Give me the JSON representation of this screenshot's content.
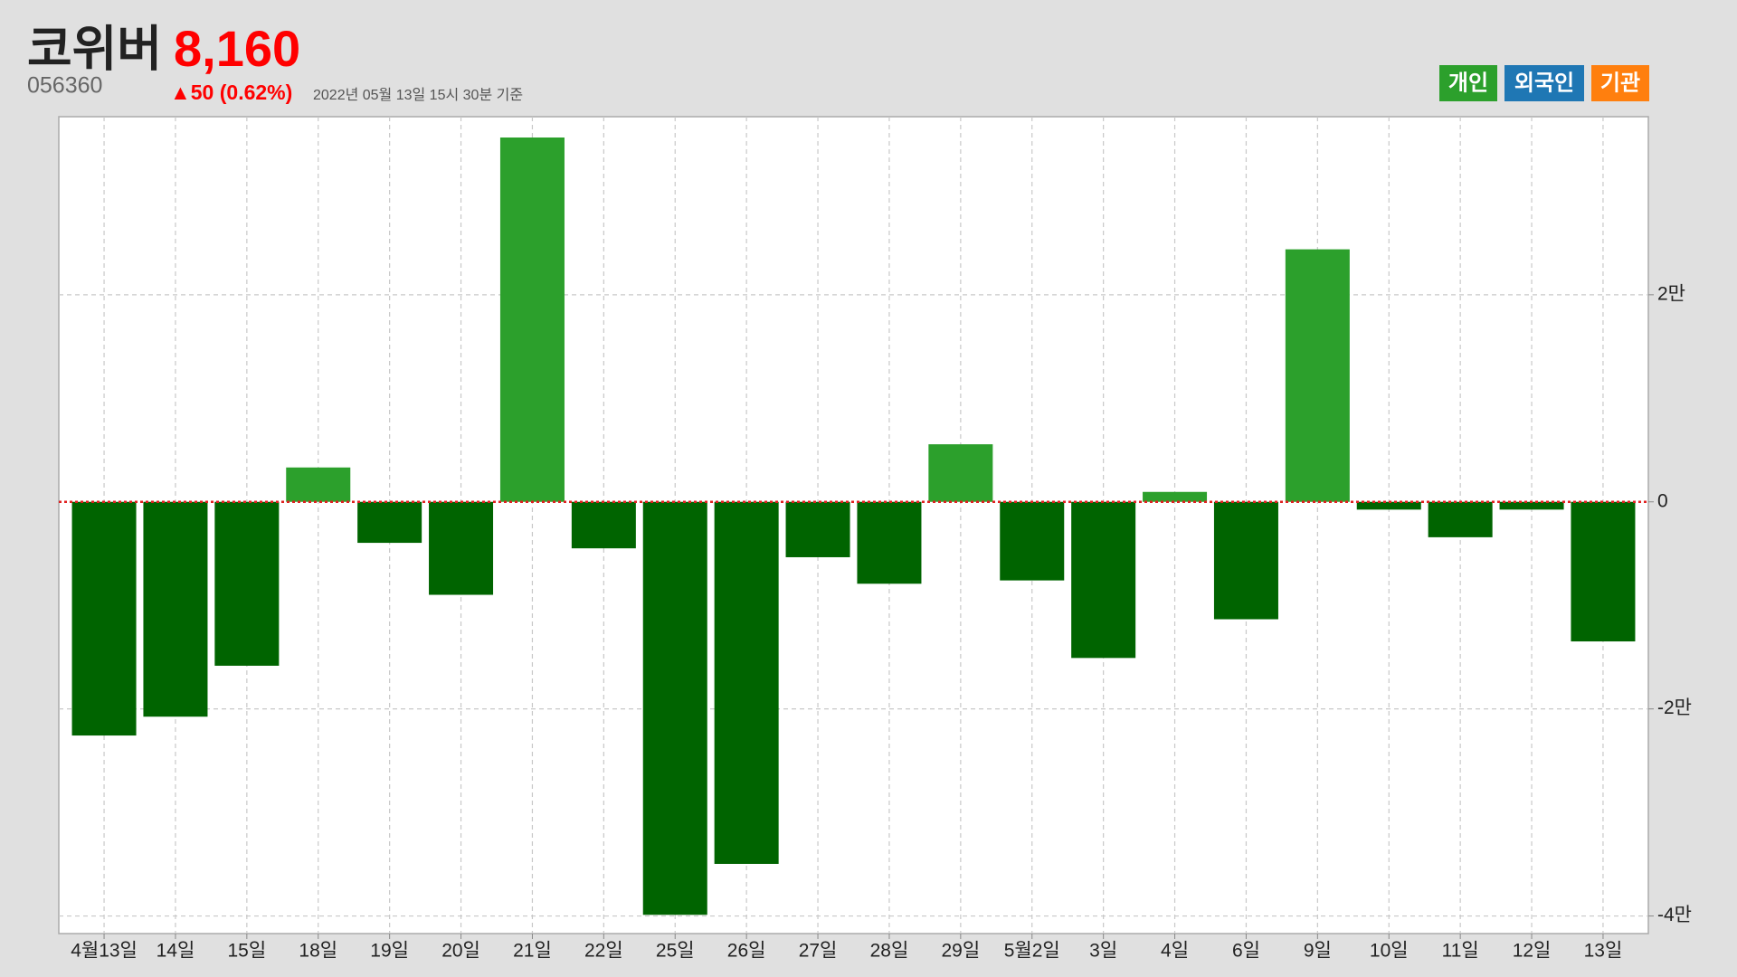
{
  "header": {
    "name": "코위버",
    "price": "8,160",
    "code": "056360",
    "change": "▲50 (0.62%)",
    "timestamp": "2022년 05월 13일 15시 30분 기준"
  },
  "toggles": [
    {
      "label": "개인",
      "color": "#2ca02c"
    },
    {
      "label": "외국인",
      "color": "#1f77b4"
    },
    {
      "label": "기관",
      "color": "#ff7f0e"
    }
  ],
  "chart_data": {
    "type": "bar",
    "categories": [
      "4월13일",
      "14일",
      "15일",
      "18일",
      "19일",
      "20일",
      "21일",
      "22일",
      "25일",
      "26일",
      "27일",
      "28일",
      "29일",
      "5월2일",
      "3일",
      "4일",
      "6일",
      "9일",
      "10일",
      "11일",
      "12일",
      "13일"
    ],
    "values": [
      -22570,
      -20750,
      -15830,
      3320,
      -3960,
      -8980,
      35190,
      -4490,
      -39890,
      -34970,
      -5350,
      -7910,
      5560,
      -7590,
      -15080,
      960,
      -11340,
      24390,
      -750,
      -3420,
      -750,
      -13480
    ],
    "color_positive": "#2ca02c",
    "color_negative": "#006400",
    "zero_line_color": "#e02020",
    "ylim": [
      -41700,
      37200
    ],
    "yticks": [
      {
        "value": -40000,
        "label": "-4만"
      },
      {
        "value": -20000,
        "label": "-2만"
      },
      0,
      {
        "value": 20000,
        "label": "2만"
      }
    ],
    "grid": true
  }
}
